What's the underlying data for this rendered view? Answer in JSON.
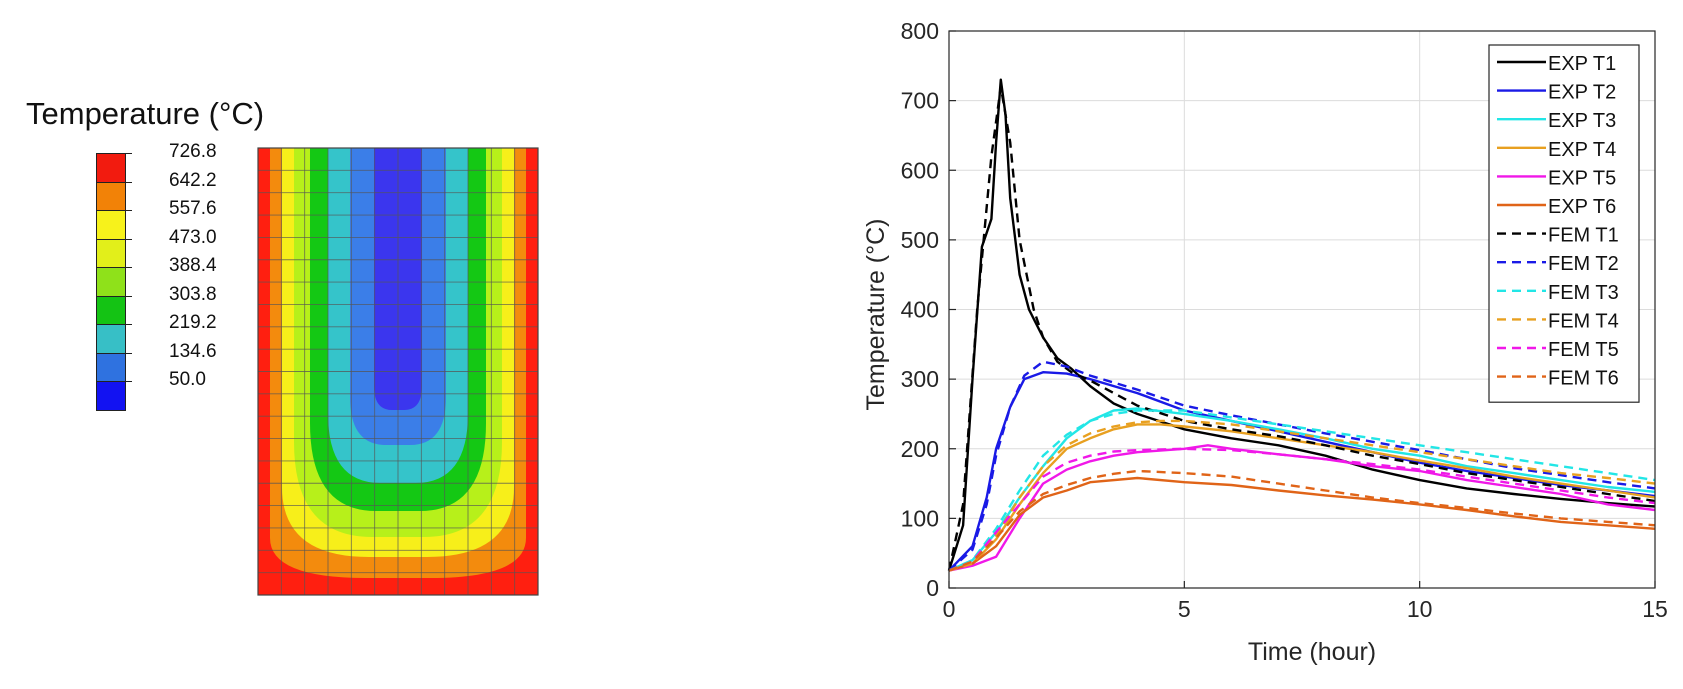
{
  "contour_panel": {
    "title": "Temperature (°C)",
    "colorbar": [
      {
        "label": "726.8",
        "color": "#f21b0f"
      },
      {
        "label": "642.2",
        "color": "#f28207"
      },
      {
        "label": "557.6",
        "color": "#f7f21b"
      },
      {
        "label": "473.0",
        "color": "#e2ef1a"
      },
      {
        "label": "388.4",
        "color": "#8fe11a"
      },
      {
        "label": "303.8",
        "color": "#14c314"
      },
      {
        "label": "219.2",
        "color": "#37bfc6"
      },
      {
        "label": "134.6",
        "color": "#2f72e0"
      },
      {
        "label": "50.0",
        "color": "#1212f2"
      }
    ],
    "field_colors": [
      "#ff1f10",
      "#f38b0d",
      "#f7ef1a",
      "#b7f01a",
      "#14c814",
      "#35c4ca",
      "#3b7ee8",
      "#3b36ee"
    ]
  },
  "chart_data": {
    "type": "line",
    "title": "",
    "xlabel": "Time (hour)",
    "ylabel": "Temperature (°C)",
    "xlim": [
      0,
      15
    ],
    "ylim": [
      0,
      800
    ],
    "xticks": [
      0,
      5,
      10,
      15
    ],
    "yticks": [
      0,
      100,
      200,
      300,
      400,
      500,
      600,
      700,
      800
    ],
    "grid": true,
    "legend_position": "top-right",
    "series": [
      {
        "name": "EXP T1",
        "color": "#000000",
        "dash": "solid",
        "x": [
          0,
          0.3,
          0.5,
          0.7,
          0.9,
          1.0,
          1.1,
          1.2,
          1.3,
          1.5,
          1.7,
          2.0,
          2.3,
          2.6,
          3.0,
          3.5,
          4.0,
          5.0,
          6.0,
          7.0,
          8.0,
          9.0,
          10.0,
          11.0,
          12.0,
          13.0,
          14.0,
          15.0
        ],
        "y": [
          25,
          90,
          300,
          490,
          530,
          640,
          730,
          680,
          560,
          450,
          400,
          360,
          330,
          315,
          290,
          265,
          250,
          228,
          215,
          205,
          190,
          170,
          155,
          143,
          135,
          128,
          122,
          117
        ]
      },
      {
        "name": "EXP T2",
        "color": "#1a1ae6",
        "dash": "solid",
        "x": [
          0,
          0.5,
          0.8,
          1.0,
          1.3,
          1.6,
          2.0,
          2.5,
          3.0,
          4.0,
          5.0,
          6.0,
          7.0,
          8.0,
          9.0,
          10.0,
          11.0,
          12.0,
          13.0,
          14.0,
          15.0
        ],
        "y": [
          25,
          60,
          130,
          200,
          260,
          300,
          310,
          308,
          300,
          280,
          255,
          240,
          225,
          210,
          195,
          180,
          168,
          158,
          148,
          140,
          132
        ]
      },
      {
        "name": "EXP T3",
        "color": "#22e6e6",
        "dash": "solid",
        "x": [
          0,
          0.5,
          1.0,
          1.5,
          2.0,
          2.5,
          3.0,
          3.5,
          4.0,
          5.0,
          6.0,
          7.0,
          8.0,
          9.0,
          10.0,
          11.0,
          12.0,
          13.0,
          14.0,
          15.0
        ],
        "y": [
          25,
          40,
          80,
          130,
          175,
          215,
          240,
          255,
          258,
          250,
          240,
          228,
          215,
          200,
          190,
          175,
          165,
          155,
          145,
          138
        ]
      },
      {
        "name": "EXP T4",
        "color": "#e8a020",
        "dash": "solid",
        "x": [
          0,
          0.5,
          1.0,
          1.5,
          2.0,
          2.5,
          3.0,
          3.5,
          4.0,
          4.5,
          5.0,
          6.0,
          7.0,
          8.0,
          9.0,
          10.0,
          11.0,
          12.0,
          13.0,
          14.0,
          15.0
        ],
        "y": [
          25,
          35,
          70,
          120,
          165,
          200,
          215,
          228,
          235,
          235,
          232,
          225,
          215,
          205,
          195,
          183,
          172,
          160,
          150,
          140,
          130
        ]
      },
      {
        "name": "EXP T5",
        "color": "#f018e8",
        "dash": "solid",
        "x": [
          0,
          0.5,
          1.0,
          1.5,
          2.0,
          2.5,
          3.0,
          3.5,
          4.0,
          5.0,
          5.5,
          6.0,
          7.0,
          8.0,
          9.0,
          10.0,
          11.0,
          12.0,
          13.0,
          14.0,
          15.0
        ],
        "y": [
          25,
          32,
          45,
          100,
          150,
          170,
          182,
          190,
          195,
          200,
          205,
          200,
          192,
          185,
          175,
          168,
          155,
          145,
          135,
          120,
          112
        ]
      },
      {
        "name": "EXP T6",
        "color": "#e06418",
        "dash": "solid",
        "x": [
          0,
          0.5,
          1.0,
          1.5,
          2.0,
          2.5,
          3.0,
          4.0,
          5.0,
          6.0,
          7.0,
          8.0,
          9.0,
          10.0,
          11.0,
          12.0,
          13.0,
          14.0,
          15.0
        ],
        "y": [
          25,
          35,
          60,
          105,
          130,
          140,
          152,
          158,
          152,
          148,
          140,
          133,
          127,
          120,
          112,
          103,
          95,
          90,
          85
        ]
      },
      {
        "name": "FEM T1",
        "color": "#000000",
        "dash": "dashed",
        "x": [
          0,
          0.3,
          0.6,
          0.9,
          1.1,
          1.3,
          1.5,
          1.8,
          2.0,
          2.3,
          2.6,
          3.0,
          3.5,
          4.0,
          5.0,
          6.0,
          7.0,
          8.0,
          9.0,
          10.0,
          11.0,
          12.0,
          13.0,
          14.0,
          15.0
        ],
        "y": [
          25,
          120,
          400,
          620,
          720,
          640,
          500,
          400,
          360,
          325,
          310,
          298,
          280,
          262,
          240,
          228,
          218,
          205,
          190,
          178,
          165,
          155,
          145,
          135,
          125
        ]
      },
      {
        "name": "FEM T2",
        "color": "#1a1ae6",
        "dash": "dashed",
        "x": [
          0,
          0.5,
          0.8,
          1.0,
          1.3,
          1.6,
          2.0,
          2.5,
          3.0,
          4.0,
          5.0,
          6.0,
          7.0,
          8.0,
          9.0,
          10.0,
          11.0,
          12.0,
          13.0,
          14.0,
          15.0
        ],
        "y": [
          25,
          55,
          120,
          190,
          260,
          305,
          325,
          318,
          305,
          285,
          262,
          248,
          235,
          222,
          210,
          198,
          185,
          172,
          162,
          152,
          143
        ]
      },
      {
        "name": "FEM T3",
        "color": "#22e6e6",
        "dash": "dashed",
        "x": [
          0,
          0.5,
          1.0,
          1.5,
          2.0,
          2.5,
          3.0,
          3.5,
          4.0,
          5.0,
          6.0,
          7.0,
          8.0,
          9.0,
          10.0,
          11.0,
          12.0,
          13.0,
          14.0,
          15.0
        ],
        "y": [
          25,
          40,
          85,
          140,
          190,
          220,
          240,
          250,
          255,
          255,
          245,
          235,
          225,
          215,
          205,
          195,
          185,
          175,
          165,
          155
        ]
      },
      {
        "name": "FEM T4",
        "color": "#e8a020",
        "dash": "dashed",
        "x": [
          0,
          0.5,
          1.0,
          1.5,
          2.0,
          2.5,
          3.0,
          3.5,
          4.0,
          4.5,
          5.0,
          6.0,
          7.0,
          8.0,
          9.0,
          10.0,
          11.0,
          12.0,
          13.0,
          14.0,
          15.0
        ],
        "y": [
          25,
          35,
          75,
          130,
          175,
          205,
          222,
          232,
          238,
          240,
          240,
          235,
          225,
          215,
          205,
          195,
          185,
          175,
          165,
          158,
          150
        ]
      },
      {
        "name": "FEM T5",
        "color": "#f018e8",
        "dash": "dashed",
        "x": [
          0,
          0.5,
          1.0,
          1.5,
          2.0,
          2.5,
          3.0,
          3.5,
          4.0,
          5.0,
          6.0,
          7.0,
          8.0,
          9.0,
          10.0,
          11.0,
          12.0,
          13.0,
          14.0,
          15.0
        ],
        "y": [
          25,
          38,
          80,
          120,
          160,
          180,
          190,
          196,
          198,
          200,
          198,
          192,
          185,
          178,
          170,
          160,
          150,
          140,
          130,
          122
        ]
      },
      {
        "name": "FEM T6",
        "color": "#e06418",
        "dash": "dashed",
        "x": [
          0,
          0.5,
          1.0,
          1.5,
          2.0,
          2.5,
          3.0,
          3.5,
          4.0,
          5.0,
          6.0,
          7.0,
          8.0,
          9.0,
          10.0,
          11.0,
          12.0,
          13.0,
          14.0,
          15.0
        ],
        "y": [
          25,
          38,
          72,
          110,
          135,
          148,
          158,
          164,
          168,
          165,
          160,
          150,
          140,
          130,
          122,
          115,
          107,
          100,
          95,
          90
        ]
      }
    ]
  }
}
